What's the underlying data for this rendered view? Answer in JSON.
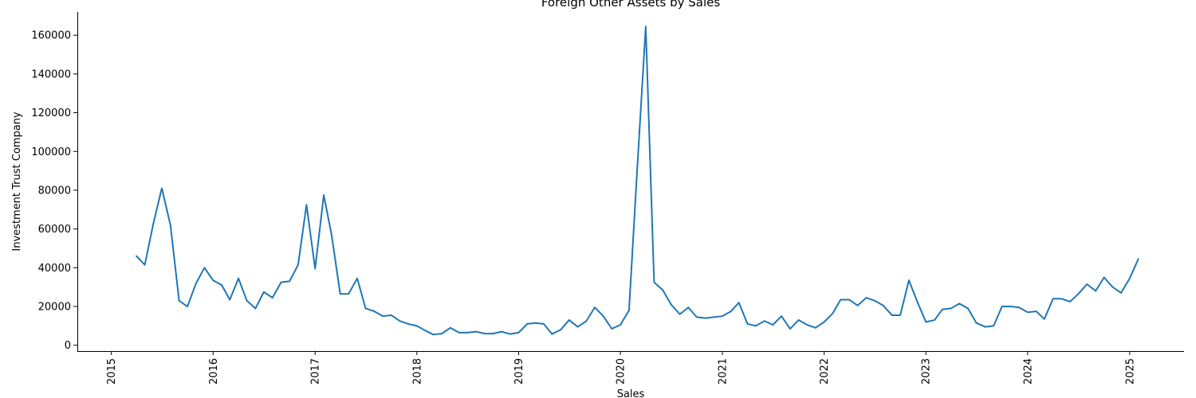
{
  "chart_data": {
    "type": "line",
    "title": "Foreign Other Assets by Sales",
    "xlabel": "Sales",
    "ylabel": "Investment Trust Company",
    "xlim": [
      "2014-09-01",
      "2025-07-15"
    ],
    "ylim": [
      -3000,
      172000
    ],
    "grid": false,
    "legend": "none",
    "x_ticks": [
      "2015",
      "2016",
      "2017",
      "2018",
      "2019",
      "2020",
      "2021",
      "2022",
      "2023",
      "2024",
      "2025"
    ],
    "y_ticks": [
      0,
      20000,
      40000,
      60000,
      80000,
      100000,
      120000,
      140000,
      160000
    ],
    "series": [
      {
        "color": "#1f77b4",
        "x": [
          "2015-04",
          "2015-05",
          "2015-06",
          "2015-07",
          "2015-08",
          "2015-09",
          "2015-10",
          "2015-11",
          "2015-12",
          "2016-01",
          "2016-02",
          "2016-03",
          "2016-04",
          "2016-05",
          "2016-06",
          "2016-07",
          "2016-08",
          "2016-09",
          "2016-10",
          "2016-11",
          "2016-12",
          "2017-01",
          "2017-02",
          "2017-03",
          "2017-04",
          "2017-05",
          "2017-06",
          "2017-07",
          "2017-08",
          "2017-09",
          "2017-10",
          "2017-11",
          "2017-12",
          "2018-01",
          "2018-02",
          "2018-03",
          "2018-04",
          "2018-05",
          "2018-06",
          "2018-07",
          "2018-08",
          "2018-09",
          "2018-10",
          "2018-11",
          "2018-12",
          "2019-01",
          "2019-02",
          "2019-03",
          "2019-04",
          "2019-05",
          "2019-06",
          "2019-07",
          "2019-08",
          "2019-09",
          "2019-10",
          "2019-11",
          "2019-12",
          "2020-01",
          "2020-02",
          "2020-03",
          "2020-04",
          "2020-05",
          "2020-06",
          "2020-07",
          "2020-08",
          "2020-09",
          "2020-10",
          "2020-11",
          "2020-12",
          "2021-01",
          "2021-02",
          "2021-03",
          "2021-04",
          "2021-05",
          "2021-06",
          "2021-07",
          "2021-08",
          "2021-09",
          "2021-10",
          "2021-11",
          "2021-12",
          "2022-01",
          "2022-02",
          "2022-03",
          "2022-04",
          "2022-05",
          "2022-06",
          "2022-07",
          "2022-08",
          "2022-09",
          "2022-10",
          "2022-11",
          "2022-12",
          "2023-01",
          "2023-02",
          "2023-03",
          "2023-04",
          "2023-05",
          "2023-06",
          "2023-07",
          "2023-08",
          "2023-09",
          "2023-10",
          "2023-11",
          "2023-12",
          "2024-01",
          "2024-02",
          "2024-03",
          "2024-04",
          "2024-05",
          "2024-06",
          "2024-07",
          "2024-08",
          "2024-09",
          "2024-10",
          "2024-11",
          "2024-12",
          "2025-01",
          "2025-02"
        ],
        "values": [
          46000,
          41500,
          63000,
          81000,
          62000,
          23000,
          20000,
          32000,
          40000,
          33500,
          31000,
          23500,
          34500,
          23000,
          19000,
          27500,
          24500,
          32500,
          33000,
          41500,
          72500,
          39500,
          77500,
          57000,
          26500,
          26500,
          34500,
          19000,
          17500,
          15000,
          15500,
          12500,
          11000,
          10000,
          7500,
          5500,
          6000,
          9000,
          6500,
          6500,
          7000,
          6000,
          6000,
          7000,
          5800,
          6500,
          11000,
          11500,
          11000,
          5800,
          8000,
          13000,
          9500,
          12500,
          19500,
          15000,
          8500,
          10500,
          18000,
          90000,
          164500,
          32500,
          28500,
          21000,
          16000,
          19500,
          14500,
          14000,
          14500,
          15000,
          17500,
          22000,
          11000,
          10000,
          12500,
          10500,
          15000,
          8500,
          13000,
          10500,
          9000,
          12000,
          16500,
          23500,
          23500,
          20500,
          24500,
          23000,
          20500,
          15500,
          15500,
          33500,
          22500,
          12000,
          13000,
          18500,
          19000,
          21500,
          19000,
          11500,
          9500,
          10000,
          20000,
          20000,
          19500,
          17000,
          17500,
          13500,
          24000,
          24000,
          22500,
          26500,
          31500,
          28000,
          35000,
          30000,
          27000,
          34500,
          44500
        ]
      }
    ]
  }
}
